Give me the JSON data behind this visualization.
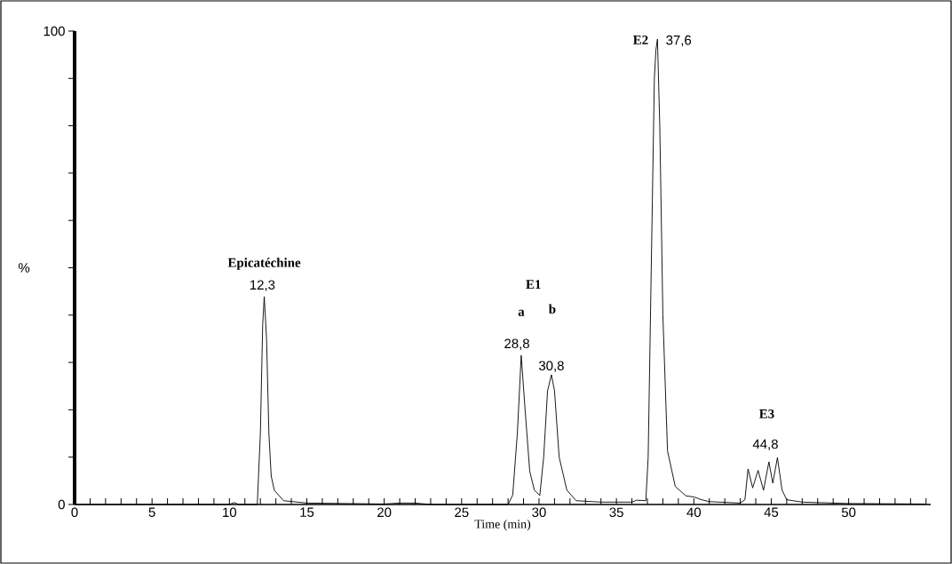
{
  "chart_data": {
    "type": "line",
    "xlabel": "Time (min)",
    "ylabel": "%",
    "x": [
      0,
      10,
      10.3,
      10.6,
      11.8,
      12.0,
      12.15,
      12.25,
      12.4,
      12.55,
      12.7,
      12.9,
      13.5,
      15,
      20,
      21,
      22,
      23,
      28.0,
      28.3,
      28.6,
      28.85,
      29.1,
      29.4,
      29.7,
      30.05,
      30.3,
      30.55,
      30.8,
      31.0,
      31.3,
      31.8,
      32.4,
      34,
      36,
      36.3,
      36.9,
      37.05,
      37.3,
      37.45,
      37.55,
      37.65,
      37.8,
      38.0,
      38.3,
      38.8,
      39.5,
      40.0,
      40.5,
      41,
      43,
      43.3,
      43.5,
      43.8,
      44.15,
      44.5,
      44.85,
      45.1,
      45.4,
      45.7,
      46,
      47,
      50,
      55
    ],
    "series": [
      {
        "color": "#000000",
        "values": [
          0,
          0,
          0.4,
          0,
          0,
          15,
          38,
          43.9,
          35,
          15,
          6,
          3,
          0.8,
          0.3,
          0.1,
          0.3,
          0.3,
          0,
          0,
          2,
          15,
          31.5,
          20,
          7,
          3,
          1.9,
          10,
          24,
          27.4,
          24,
          10,
          3,
          0.8,
          0.5,
          0.5,
          0.9,
          0.8,
          10,
          60,
          90,
          96,
          98.3,
          80,
          40,
          11.3,
          3.8,
          1.8,
          1.6,
          1,
          0.6,
          0.3,
          1,
          7.5,
          3.5,
          7.2,
          3,
          9,
          4.5,
          9.9,
          3,
          1,
          0.5,
          0.2,
          0.1
        ]
      }
    ],
    "xlim": [
      0,
      55.3
    ],
    "ylim": [
      0,
      100
    ],
    "xticks": [
      0,
      {
        "value": 1,
        "label": null
      },
      {
        "value": 2,
        "label": null
      },
      {
        "value": 3,
        "label": null
      },
      {
        "value": 4,
        "label": null
      },
      5,
      {
        "value": 6,
        "label": null
      },
      {
        "value": 7,
        "label": null
      },
      {
        "value": 8,
        "label": null
      },
      {
        "value": 9,
        "label": null
      },
      10,
      {
        "value": 11,
        "label": null
      },
      {
        "value": 12,
        "label": null
      },
      {
        "value": 13,
        "label": null
      },
      {
        "value": 14,
        "label": null
      },
      15,
      {
        "value": 16,
        "label": null
      },
      {
        "value": 17,
        "label": null
      },
      {
        "value": 18,
        "label": null
      },
      {
        "value": 19,
        "label": null
      },
      20,
      {
        "value": 21,
        "label": null
      },
      {
        "value": 22,
        "label": null
      },
      {
        "value": 23,
        "label": null
      },
      {
        "value": 24,
        "label": null
      },
      25,
      {
        "value": 26,
        "label": null
      },
      {
        "value": 27,
        "label": null
      },
      {
        "value": 28,
        "label": null
      },
      {
        "value": 29,
        "label": null
      },
      30,
      {
        "value": 31,
        "label": null
      },
      {
        "value": 32,
        "label": null
      },
      {
        "value": 33,
        "label": null
      },
      {
        "value": 34,
        "label": null
      },
      35,
      {
        "value": 36,
        "label": null
      },
      {
        "value": 37,
        "label": null
      },
      {
        "value": 38,
        "label": null
      },
      {
        "value": 39,
        "label": null
      },
      40,
      {
        "value": 41,
        "label": null
      },
      {
        "value": 42,
        "label": null
      },
      {
        "value": 43,
        "label": null
      },
      {
        "value": 44,
        "label": null
      },
      45,
      {
        "value": 46,
        "label": null
      },
      {
        "value": 47,
        "label": null
      },
      {
        "value": 48,
        "label": null
      },
      {
        "value": 49,
        "label": null
      },
      50,
      {
        "value": 51,
        "label": null
      },
      {
        "value": 52,
        "label": null
      },
      {
        "value": 53,
        "label": null
      },
      {
        "value": 54,
        "label": null
      },
      {
        "value": 55,
        "label": null
      }
    ],
    "yticks": [
      0,
      {
        "value": 10,
        "label": null
      },
      {
        "value": 20,
        "label": null
      },
      {
        "value": 30,
        "label": null
      },
      {
        "value": 40,
        "label": null
      },
      {
        "value": 50,
        "label": null
      },
      {
        "value": 60,
        "label": null
      },
      {
        "value": 70,
        "label": null
      },
      {
        "value": 80,
        "label": null
      },
      {
        "value": 90,
        "label": null
      },
      100
    ],
    "grid": false,
    "marker": "none",
    "line_style": "solid",
    "annotations": [
      {
        "text": "**Epicatéchine**",
        "x": 12.25,
        "y": 43.9
      },
      "**E1**",
      {
        "text": "**a**",
        "x": 28.85,
        "y": 31.5
      },
      "**b**",
      {
        "text": "**E2**",
        "x": 37.65,
        "y": 98.3
      },
      {
        "text": "**E3**",
        "x": 45.4,
        "y": 9.9
      },
      {
        "text": "12,3",
        "x": 12.3,
        "y": 43.9
      },
      {
        "text": "28,8",
        "x": 28.8,
        "y": 31.5
      },
      {
        "text": "30,8",
        "x": 30.8,
        "y": 27.4
      },
      {
        "text": "37,6",
        "x": 37.6,
        "y": 98.3
      },
      {
        "text": "44,8",
        "x": 44.8,
        "y": 9.9
      }
    ]
  }
}
